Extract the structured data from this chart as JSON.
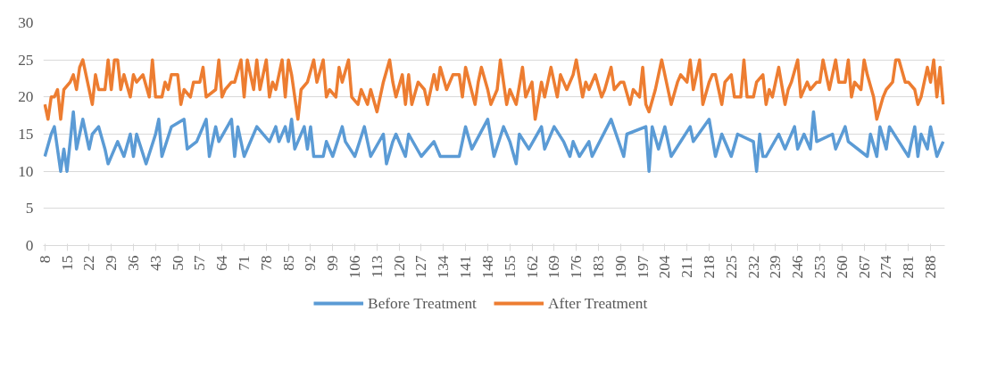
{
  "chart_data": {
    "type": "line",
    "xlim": [
      7.5,
      292.5
    ],
    "xticks": [
      8,
      15,
      22,
      29,
      36,
      43,
      50,
      57,
      64,
      71,
      78,
      85,
      92,
      99,
      106,
      113,
      120,
      127,
      134,
      141,
      148,
      155,
      162,
      169,
      176,
      183,
      190,
      197,
      204,
      211,
      218,
      225,
      232,
      239,
      246,
      253,
      260,
      267,
      274,
      281,
      288
    ],
    "ylim": [
      0,
      30
    ],
    "yticks": [
      0,
      5,
      10,
      15,
      20,
      25,
      30
    ],
    "grid": "y",
    "legend": "bottom",
    "marker": "none",
    "line_style": "solid",
    "series": [
      {
        "name": "Before Treatment",
        "color": "#5b9bd5",
        "x": [
          8,
          10,
          11,
          13,
          14,
          15,
          17,
          18,
          20,
          22,
          23,
          25,
          27,
          28,
          31,
          33,
          35,
          36,
          37,
          40,
          43,
          44,
          45,
          48,
          52,
          53,
          56,
          59,
          60,
          62,
          63,
          67,
          68,
          69,
          71,
          75,
          79,
          81,
          82,
          84,
          85,
          86,
          87,
          90,
          91,
          92,
          93,
          96,
          97,
          99,
          102,
          103,
          106,
          109,
          111,
          115,
          116,
          118,
          119,
          122,
          123,
          127,
          131,
          133,
          139,
          141,
          143,
          148,
          150,
          153,
          155,
          157,
          158,
          161,
          165,
          166,
          169,
          172,
          174,
          175,
          177,
          180,
          181,
          187,
          191,
          192,
          198,
          199,
          200,
          202,
          204,
          206,
          212,
          213,
          218,
          220,
          222,
          225,
          227,
          232,
          233,
          234,
          235,
          236,
          240,
          242,
          245,
          246,
          248,
          250,
          251,
          252,
          257,
          258,
          261,
          262,
          268,
          269,
          271,
          272,
          274,
          275,
          281,
          283,
          284,
          285,
          287,
          288,
          290,
          292
        ],
        "values": [
          12,
          15,
          16,
          10,
          13,
          10,
          18,
          13,
          17,
          13,
          15,
          16,
          13,
          11,
          14,
          12,
          15,
          12,
          15,
          11,
          15,
          17,
          12,
          16,
          17,
          13,
          14,
          17,
          12,
          16,
          14,
          17,
          12,
          16,
          12,
          16,
          14,
          16,
          14,
          16,
          14,
          17,
          13,
          16,
          13,
          16,
          12,
          12,
          14,
          12,
          16,
          14,
          12,
          16,
          12,
          15,
          11,
          14,
          15,
          12,
          15,
          12,
          14,
          12,
          12,
          16,
          13,
          17,
          12,
          16,
          14,
          11,
          15,
          13,
          16,
          13,
          16,
          14,
          12,
          14,
          12,
          14,
          12,
          17,
          12,
          15,
          16,
          10,
          16,
          13,
          16,
          12,
          16,
          14,
          17,
          12,
          15,
          12,
          15,
          14,
          10,
          15,
          12,
          12,
          15,
          13,
          16,
          13,
          15,
          13,
          18,
          14,
          15,
          13,
          16,
          14,
          12,
          15,
          12,
          16,
          13,
          16,
          12,
          16,
          12,
          15,
          13,
          16,
          12,
          14
        ]
      },
      {
        "name": "After Treatment",
        "color": "#ed7d31",
        "x": [
          8,
          9,
          10,
          11,
          12,
          13,
          14,
          16,
          17,
          18,
          19,
          20,
          22,
          23,
          24,
          25,
          27,
          28,
          29,
          30,
          31,
          32,
          33,
          35,
          36,
          37,
          39,
          41,
          42,
          43,
          45,
          46,
          47,
          48,
          50,
          51,
          52,
          54,
          55,
          57,
          58,
          59,
          62,
          63,
          64,
          65,
          67,
          68,
          70,
          71,
          72,
          74,
          75,
          76,
          78,
          79,
          80,
          81,
          83,
          84,
          85,
          86,
          88,
          89,
          91,
          93,
          94,
          96,
          97,
          98,
          100,
          101,
          102,
          104,
          105,
          107,
          108,
          110,
          111,
          113,
          115,
          117,
          118,
          119,
          121,
          122,
          123,
          124,
          126,
          128,
          129,
          131,
          132,
          133,
          135,
          137,
          139,
          140,
          141,
          144,
          145,
          146,
          148,
          149,
          151,
          152,
          154,
          155,
          157,
          159,
          160,
          162,
          163,
          165,
          166,
          168,
          170,
          171,
          173,
          175,
          176,
          178,
          179,
          180,
          182,
          184,
          185,
          187,
          188,
          190,
          191,
          193,
          194,
          196,
          197,
          198,
          199,
          201,
          202,
          203,
          205,
          206,
          208,
          209,
          211,
          212,
          213,
          215,
          216,
          218,
          219,
          220,
          222,
          223,
          225,
          226,
          228,
          229,
          230,
          232,
          233,
          235,
          236,
          237,
          238,
          240,
          242,
          243,
          244,
          246,
          247,
          249,
          250,
          252,
          253,
          254,
          256,
          258,
          259,
          261,
          262,
          263,
          264,
          266,
          267,
          268,
          270,
          271,
          273,
          274,
          276,
          277,
          278,
          280,
          281,
          283,
          284,
          285,
          287,
          288,
          289,
          290,
          291,
          292
        ],
        "values": [
          19,
          17,
          20,
          20,
          21,
          17,
          21,
          22,
          23,
          21,
          24,
          25,
          21,
          19,
          23,
          21,
          21,
          25,
          21,
          25,
          25,
          21,
          23,
          20,
          23,
          22,
          23,
          20,
          25,
          20,
          20,
          22,
          21,
          23,
          23,
          19,
          21,
          20,
          22,
          22,
          24,
          20,
          21,
          25,
          20,
          21,
          22,
          22,
          25,
          20,
          25,
          21,
          25,
          21,
          25,
          20,
          22,
          21,
          25,
          20,
          25,
          23,
          17,
          21,
          22,
          25,
          22,
          25,
          20,
          21,
          20,
          24,
          22,
          25,
          20,
          19,
          21,
          19,
          21,
          18,
          22,
          25,
          22,
          20,
          23,
          19,
          23,
          19,
          22,
          21,
          19,
          23,
          21,
          24,
          21,
          23,
          23,
          20,
          24,
          19,
          22,
          24,
          21,
          19,
          21,
          25,
          19,
          21,
          19,
          24,
          20,
          22,
          17,
          22,
          20,
          24,
          20,
          23,
          21,
          23,
          25,
          20,
          22,
          21,
          23,
          20,
          21,
          24,
          21,
          22,
          22,
          19,
          21,
          20,
          24,
          19,
          18,
          21,
          23,
          25,
          21,
          19,
          22,
          23,
          22,
          25,
          21,
          25,
          19,
          22,
          23,
          23,
          19,
          22,
          23,
          20,
          20,
          25,
          20,
          20,
          22,
          23,
          19,
          21,
          20,
          24,
          19,
          21,
          22,
          25,
          20,
          22,
          21,
          22,
          22,
          25,
          21,
          25,
          22,
          22,
          25,
          20,
          22,
          21,
          25,
          23,
          20,
          17,
          20,
          21,
          22,
          25,
          25,
          22,
          22,
          21,
          19,
          20,
          24,
          22,
          25,
          20,
          24,
          19
        ]
      }
    ]
  }
}
